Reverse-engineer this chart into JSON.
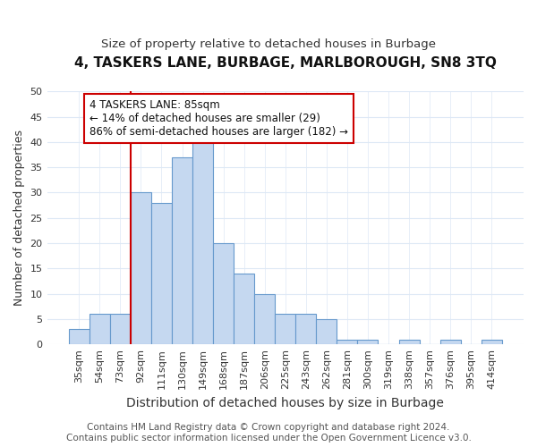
{
  "title": "4, TASKERS LANE, BURBAGE, MARLBOROUGH, SN8 3TQ",
  "subtitle": "Size of property relative to detached houses in Burbage",
  "xlabel": "Distribution of detached houses by size in Burbage",
  "ylabel": "Number of detached properties",
  "categories": [
    "35sqm",
    "54sqm",
    "73sqm",
    "92sqm",
    "111sqm",
    "130sqm",
    "149sqm",
    "168sqm",
    "187sqm",
    "206sqm",
    "225sqm",
    "243sqm",
    "262sqm",
    "281sqm",
    "300sqm",
    "319sqm",
    "338sqm",
    "357sqm",
    "376sqm",
    "395sqm",
    "414sqm"
  ],
  "values": [
    3,
    6,
    6,
    30,
    28,
    37,
    42,
    20,
    14,
    10,
    6,
    6,
    5,
    1,
    1,
    0,
    1,
    0,
    1,
    0,
    1
  ],
  "bar_color": "#c5d8f0",
  "bar_edge_color": "#6699cc",
  "bg_color": "#ffffff",
  "grid_color": "#dde8f5",
  "annotation_text": "4 TASKERS LANE: 85sqm\n← 14% of detached houses are smaller (29)\n86% of semi-detached houses are larger (182) →",
  "annotation_box_color": "#ffffff",
  "annotation_box_edge": "#cc0000",
  "vline_color": "#cc0000",
  "vline_x_index": 3,
  "ylim": [
    0,
    50
  ],
  "footer": "Contains HM Land Registry data © Crown copyright and database right 2024.\nContains public sector information licensed under the Open Government Licence v3.0.",
  "title_fontsize": 11,
  "subtitle_fontsize": 9.5,
  "xlabel_fontsize": 10,
  "ylabel_fontsize": 9,
  "tick_fontsize": 8,
  "annotation_fontsize": 8.5,
  "footer_fontsize": 7.5
}
